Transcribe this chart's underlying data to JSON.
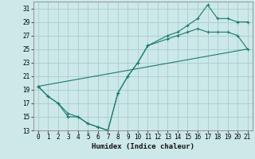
{
  "title": "",
  "xlabel": "Humidex (Indice chaleur)",
  "ylabel": "",
  "background_color": "#cce8e8",
  "grid_color": "#aacccc",
  "line_color": "#1a7a6e",
  "xlim": [
    -0.5,
    21.5
  ],
  "ylim": [
    13,
    32
  ],
  "xticks": [
    0,
    1,
    2,
    3,
    4,
    5,
    6,
    7,
    8,
    9,
    10,
    11,
    12,
    13,
    14,
    15,
    16,
    17,
    18,
    19,
    20,
    21
  ],
  "yticks": [
    13,
    15,
    17,
    19,
    21,
    23,
    25,
    27,
    29,
    31
  ],
  "line1_x": [
    0,
    1,
    2,
    3,
    4,
    5,
    6,
    7,
    8,
    9,
    10,
    11,
    13,
    14,
    15,
    16,
    17,
    18,
    19,
    20,
    21
  ],
  "line1_y": [
    19.5,
    18.0,
    17.0,
    15.0,
    15.0,
    14.0,
    13.5,
    13.0,
    18.5,
    21.0,
    23.0,
    25.5,
    27.0,
    27.5,
    28.5,
    29.5,
    31.5,
    29.5,
    29.5,
    29.0,
    29.0
  ],
  "line2_x": [
    0,
    1,
    2,
    3,
    4,
    5,
    6,
    7,
    8,
    9,
    10,
    11,
    13,
    14,
    15,
    16,
    17,
    18,
    19,
    20,
    21
  ],
  "line2_y": [
    19.5,
    18.0,
    17.0,
    15.5,
    15.0,
    14.0,
    13.5,
    13.0,
    18.5,
    21.0,
    23.0,
    25.5,
    26.5,
    27.0,
    27.5,
    28.0,
    27.5,
    27.5,
    27.5,
    27.0,
    25.0
  ],
  "line3_x": [
    0,
    21
  ],
  "line3_y": [
    19.5,
    25.0
  ]
}
